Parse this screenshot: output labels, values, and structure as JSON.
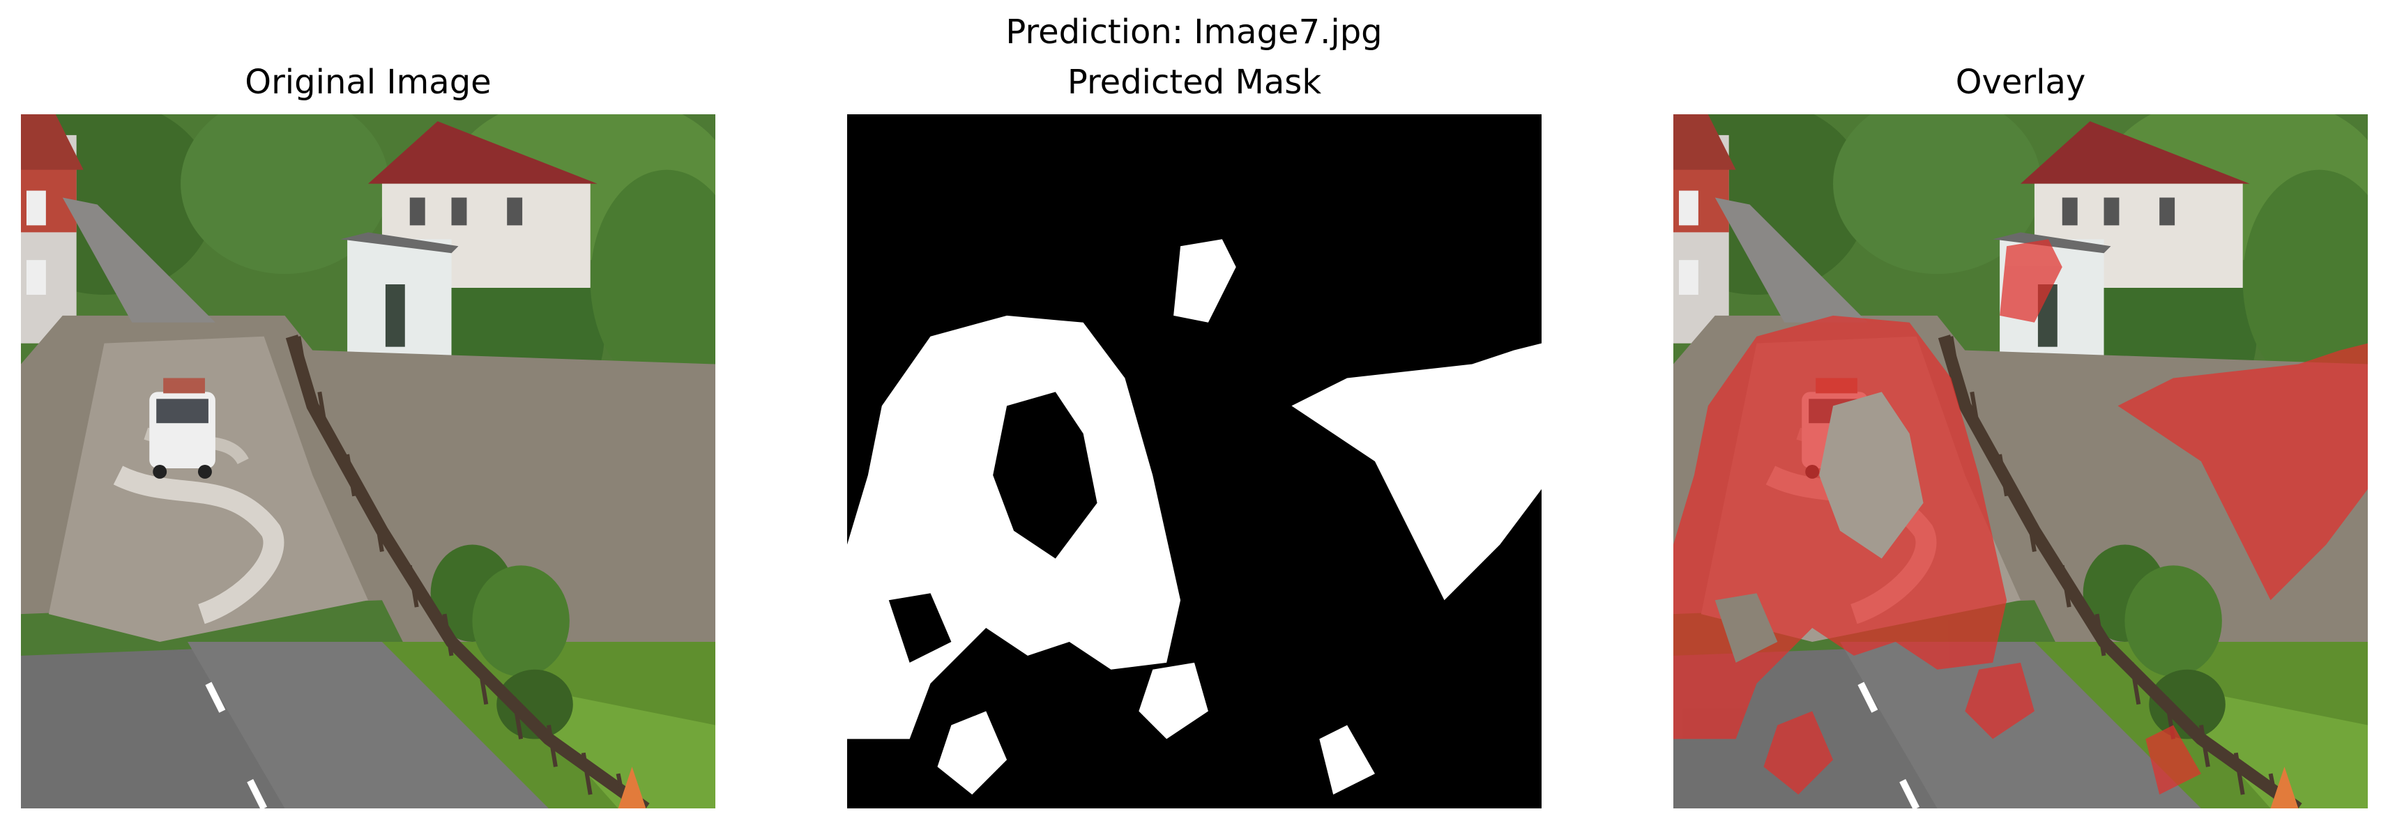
{
  "figure": {
    "title": "Prediction: Image7.jpg"
  },
  "panels": [
    {
      "title": "Original Image",
      "content": "photo"
    },
    {
      "title": "Predicted Mask",
      "content": "binary-mask"
    },
    {
      "title": "Overlay",
      "content": "photo-with-mask"
    }
  ],
  "colors": {
    "mask_foreground": "#ffffff",
    "mask_background": "#000000",
    "overlay_tint": "#e0302c",
    "water": "#8b8376",
    "road": "#6f6f6f",
    "grass": "#5f8f2e",
    "trees": "#3f6b2a",
    "roof": "#8e2d2d"
  }
}
